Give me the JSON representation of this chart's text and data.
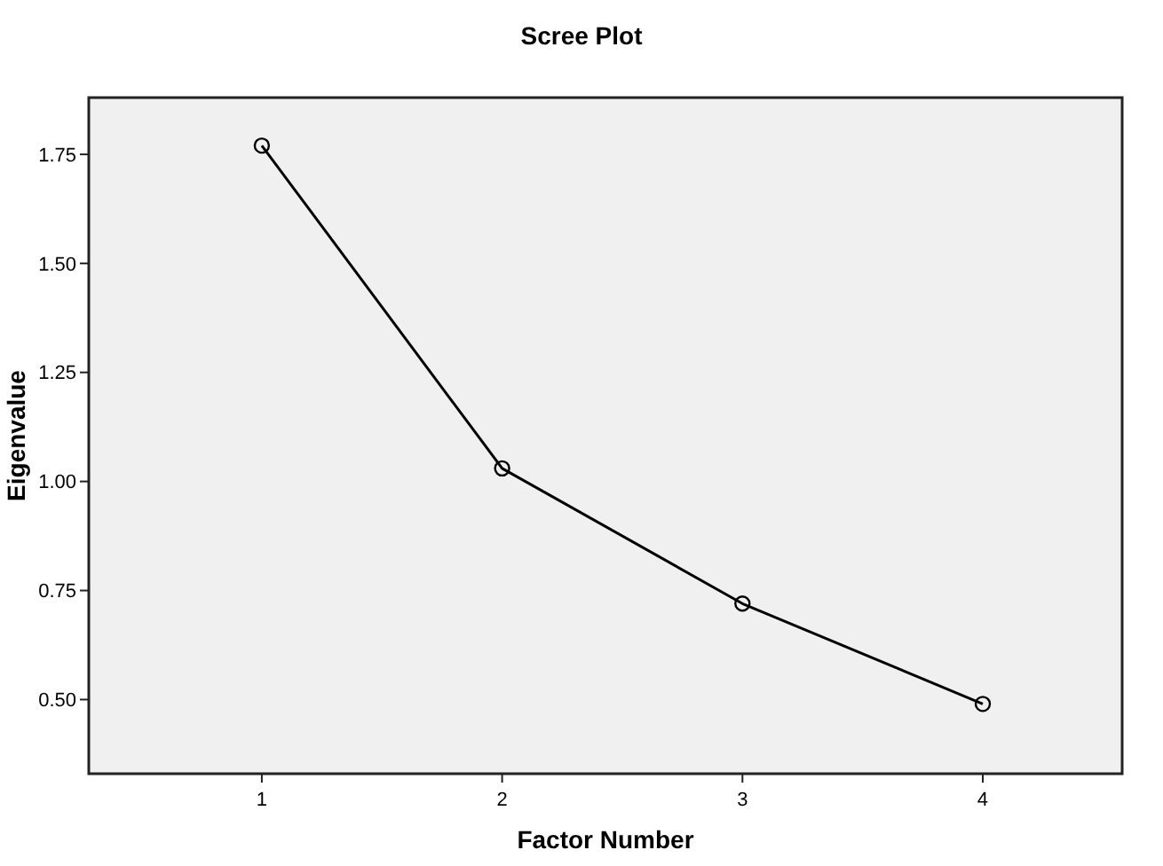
{
  "chart_data": {
    "type": "line",
    "title": "Scree Plot",
    "xlabel": "Factor Number",
    "ylabel": "Eigenvalue",
    "x": [
      1,
      2,
      3,
      4
    ],
    "series": [
      {
        "color": "#000000",
        "values": [
          1.77,
          1.03,
          0.72,
          0.49
        ]
      }
    ],
    "xlim": [
      0.28,
      4.58
    ],
    "xticks": [
      1,
      2,
      3,
      4
    ],
    "ylim": [
      0.33,
      1.88
    ],
    "yticks": [
      {
        "value": 0.5,
        "label": "0.50"
      },
      {
        "value": 0.75,
        "label": "0.75"
      },
      {
        "value": 1,
        "label": "1.00"
      },
      {
        "value": 1.25,
        "label": "1.25"
      },
      {
        "value": 1.5,
        "label": "1.50"
      },
      {
        "value": 1.75,
        "label": "1.75"
      }
    ],
    "marker": "circle",
    "line_style": "solid",
    "grid": false
  }
}
